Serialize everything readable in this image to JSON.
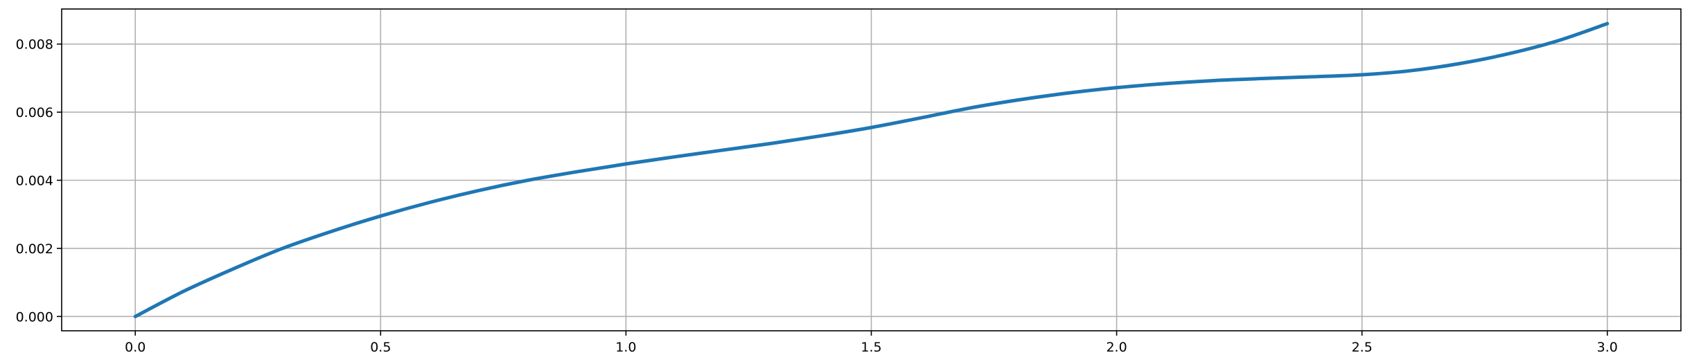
{
  "chart_data": {
    "type": "line",
    "title": "",
    "xlabel": "",
    "ylabel": "",
    "xlim": [
      -0.15,
      3.15
    ],
    "ylim": [
      -0.00042,
      0.00903
    ],
    "grid": true,
    "legend": "none",
    "x_ticks": [
      0.0,
      0.5,
      1.0,
      1.5,
      2.0,
      2.5,
      3.0
    ],
    "x_tick_labels": [
      "0.0",
      "0.5",
      "1.0",
      "1.5",
      "2.0",
      "2.5",
      "3.0"
    ],
    "y_ticks": [
      0.0,
      0.002,
      0.004,
      0.006,
      0.008
    ],
    "y_tick_labels": [
      "0.000",
      "0.002",
      "0.004",
      "0.006",
      "0.008"
    ],
    "series": [
      {
        "color": "#1f77b4",
        "x": [
          0.0,
          0.1,
          0.2,
          0.3,
          0.4,
          0.5,
          0.6,
          0.7,
          0.8,
          0.9,
          1.0,
          1.1,
          1.2,
          1.3,
          1.4,
          1.5,
          1.6,
          1.7,
          1.8,
          1.9,
          2.0,
          2.1,
          2.2,
          2.3,
          2.4,
          2.5,
          2.6,
          2.7,
          2.8,
          2.9,
          3.0
        ],
        "y": [
          0.0,
          0.00075,
          0.0014,
          0.002,
          0.0025,
          0.00295,
          0.00335,
          0.0037,
          0.004,
          0.00425,
          0.00448,
          0.00469,
          0.00489,
          0.00509,
          0.00531,
          0.00555,
          0.00583,
          0.00612,
          0.00636,
          0.00656,
          0.00672,
          0.00684,
          0.00693,
          0.00699,
          0.00704,
          0.0071,
          0.00722,
          0.00743,
          0.00772,
          0.0081,
          0.0086
        ]
      }
    ]
  }
}
